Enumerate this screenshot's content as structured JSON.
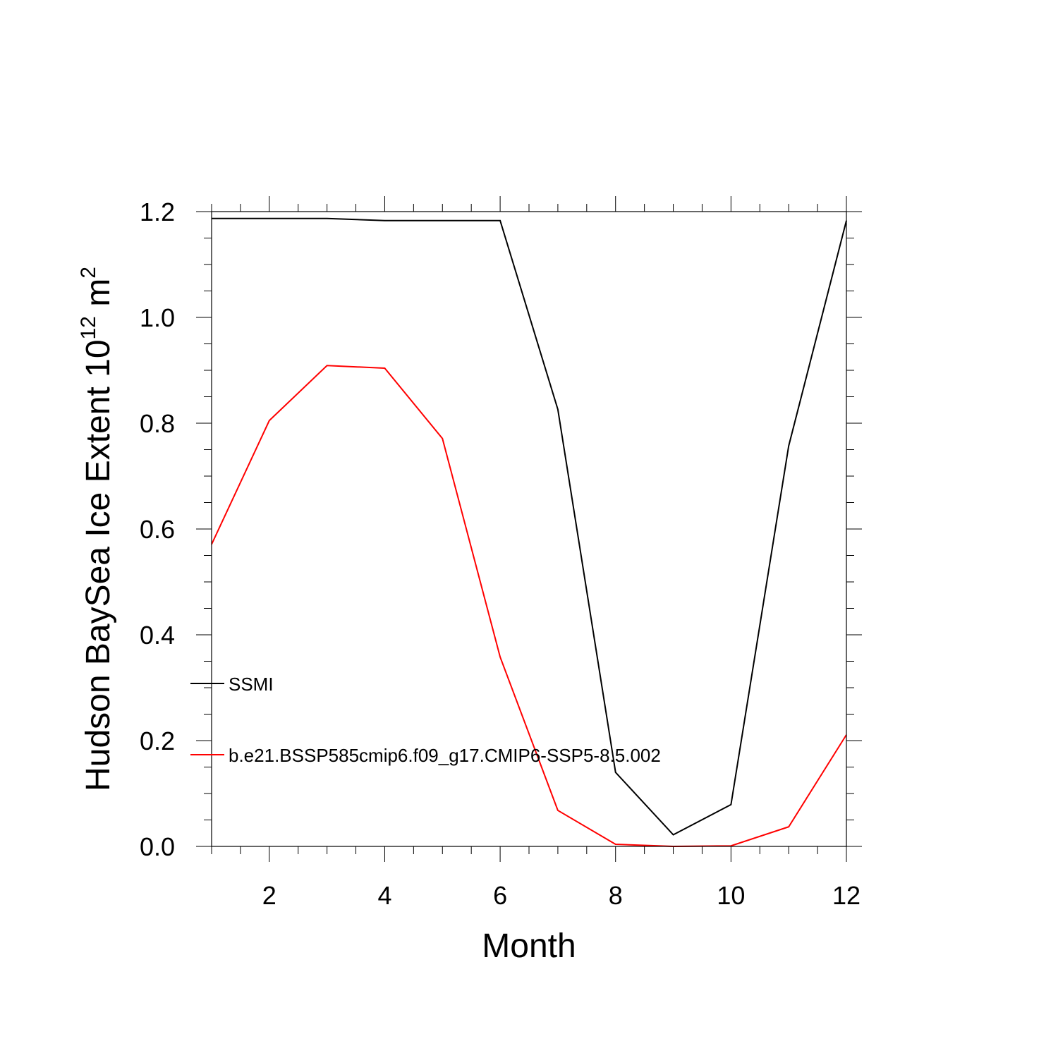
{
  "chart_data": {
    "type": "line",
    "xlabel": "Month",
    "ylabel_main": "Hudson BaySea Ice Extent 10",
    "ylabel_sup1": "12",
    "ylabel_unit": " m",
    "ylabel_sup2": "2",
    "xlim": [
      1,
      12
    ],
    "ylim": [
      0,
      1.2
    ],
    "xticks": [
      2,
      4,
      6,
      8,
      10,
      12
    ],
    "yticks": [
      0.0,
      0.2,
      0.4,
      0.6,
      0.8,
      1.0,
      1.2
    ],
    "ytick_labels": [
      "0.0",
      "0.2",
      "0.4",
      "0.6",
      "0.8",
      "1.0",
      "1.2"
    ],
    "grid": false,
    "legend_position": "left",
    "x": [
      1,
      2,
      3,
      4,
      5,
      6,
      7,
      8,
      9,
      10,
      11,
      12
    ],
    "series": [
      {
        "name": "SSMI",
        "color": "#000000",
        "values": [
          1.187,
          1.187,
          1.187,
          1.183,
          1.183,
          1.183,
          0.826,
          0.14,
          0.022,
          0.079,
          0.757,
          1.183
        ]
      },
      {
        "name": "b.e21.BSSP585cmip6.f09_g17.CMIP6-SSP5-8.5.002",
        "color": "#ff0000",
        "values": [
          0.571,
          0.805,
          0.909,
          0.904,
          0.771,
          0.358,
          0.068,
          0.004,
          0.0,
          0.001,
          0.037,
          0.211
        ]
      }
    ]
  }
}
